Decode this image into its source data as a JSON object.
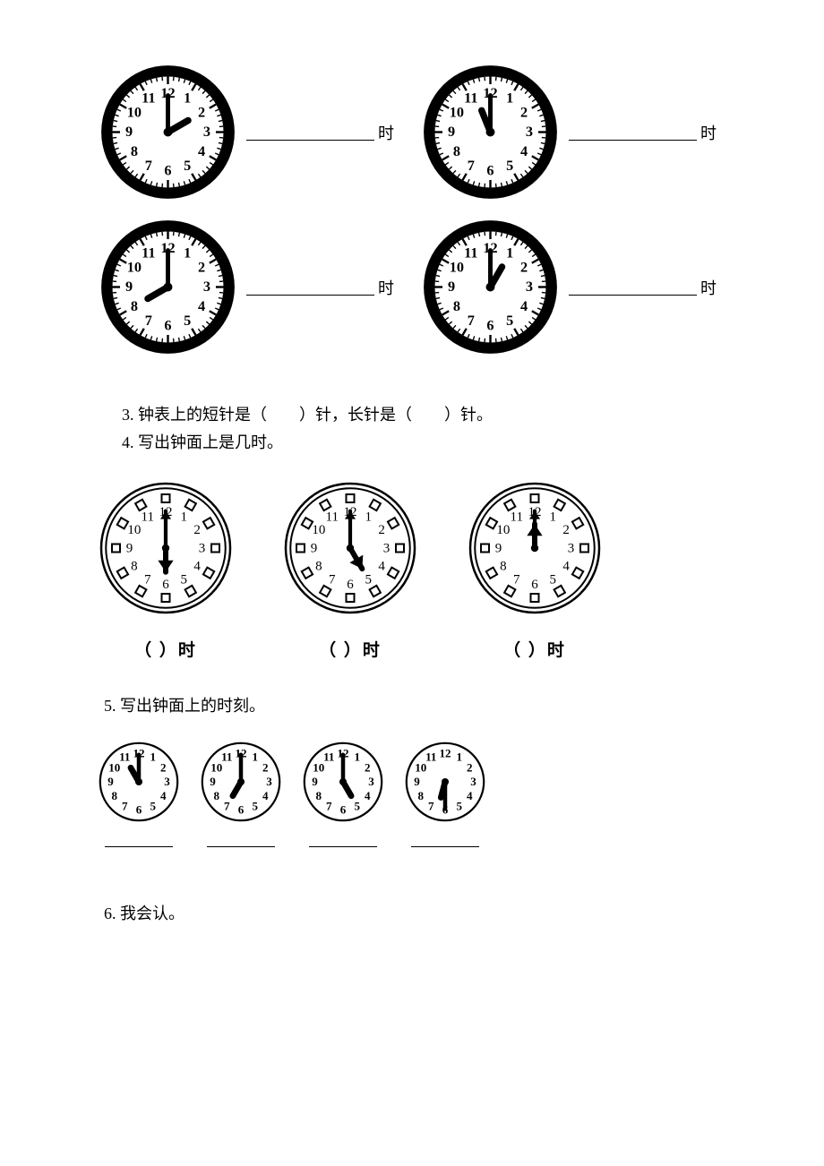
{
  "colors": {
    "bg": "#ffffff",
    "ink": "#000000"
  },
  "labels": {
    "shi": "时"
  },
  "q3": {
    "prefix": "3.",
    "text_a": "钟表上的短针是（",
    "gap1": "　　",
    "text_b": "）针，长针是（",
    "gap2": "　　",
    "text_c": "）针。"
  },
  "q4": {
    "prefix": "4.",
    "text": "写出钟面上是几时。"
  },
  "q5": {
    "prefix": "5.",
    "text": "写出钟面上的时刻。"
  },
  "q6": {
    "prefix": "6.",
    "text": "我会认。"
  },
  "row1_clocks": [
    {
      "size": 155,
      "style": "dash",
      "hour_hand_angle": 60,
      "hour_hand_len": 0.42,
      "minute_hand_angle": 0,
      "minute_hand_len": 0.66
    },
    {
      "size": 155,
      "style": "dash",
      "hour_hand_angle": 338,
      "hour_hand_len": 0.42,
      "minute_hand_angle": 0,
      "minute_hand_len": 0.66
    },
    {
      "size": 155,
      "style": "dash",
      "hour_hand_angle": 240,
      "hour_hand_len": 0.42,
      "minute_hand_angle": 0,
      "minute_hand_len": 0.66
    },
    {
      "size": 155,
      "style": "dash",
      "hour_hand_angle": 30,
      "hour_hand_len": 0.42,
      "minute_hand_angle": 0,
      "minute_hand_len": 0.66
    }
  ],
  "row2_clocks": [
    {
      "size": 150,
      "style": "square",
      "hour_hand_angle": 180,
      "hour_hand_len": 0.4,
      "hour_hand_arrow": true,
      "minute_hand_angle": 0,
      "minute_hand_len": 0.62,
      "minute_hand_arrow": true,
      "caption": "（    ）时"
    },
    {
      "size": 150,
      "style": "square",
      "hour_hand_angle": 150,
      "hour_hand_len": 0.4,
      "hour_hand_arrow": true,
      "minute_hand_angle": 0,
      "minute_hand_len": 0.62,
      "minute_hand_arrow": true,
      "caption": "（    ）时"
    },
    {
      "size": 150,
      "style": "square",
      "hour_hand_angle": 0,
      "hour_hand_len": 0.4,
      "hour_hand_arrow": true,
      "minute_hand_angle": 0,
      "minute_hand_len": 0.62,
      "minute_hand_arrow": true,
      "caption": "（    ）时"
    }
  ],
  "row3_clocks": [
    {
      "size": 90,
      "style": "plain",
      "hour_hand_angle": 330,
      "hour_hand_len": 0.42,
      "minute_hand_angle": 0,
      "minute_hand_len": 0.7
    },
    {
      "size": 90,
      "style": "plain",
      "hour_hand_angle": 210,
      "hour_hand_len": 0.42,
      "minute_hand_angle": 0,
      "minute_hand_len": 0.7
    },
    {
      "size": 90,
      "style": "plain",
      "hour_hand_angle": 150,
      "hour_hand_len": 0.42,
      "minute_hand_angle": 0,
      "minute_hand_len": 0.7
    },
    {
      "size": 90,
      "style": "plain",
      "hour_hand_angle": 195,
      "hour_hand_len": 0.42,
      "minute_hand_angle": 180,
      "minute_hand_len": 0.7
    }
  ]
}
